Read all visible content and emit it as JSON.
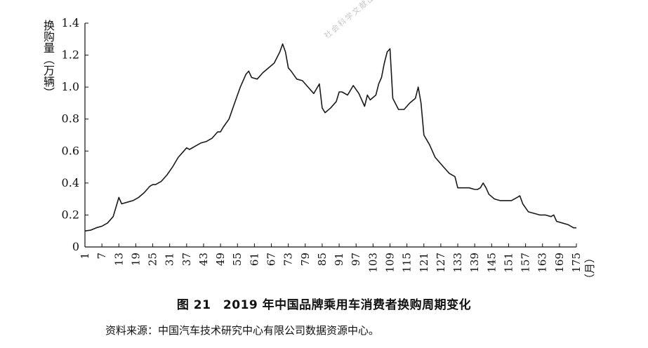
{
  "chart_data": {
    "type": "line",
    "ylabel": "换购量（万辆）",
    "x_unit_label": "（月）",
    "ylim": [
      0,
      1.4
    ],
    "xlim": [
      1,
      175
    ],
    "y_ticks": [
      0,
      0.2,
      0.4,
      0.6,
      0.8,
      1.0,
      1.2,
      1.4
    ],
    "y_tick_labels": [
      "0",
      "0.2",
      "0.4",
      "0.6",
      "0.8",
      "1.0",
      "1.2",
      "1.4"
    ],
    "x_ticks": [
      1,
      7,
      13,
      19,
      25,
      31,
      37,
      43,
      49,
      55,
      61,
      67,
      73,
      79,
      85,
      91,
      97,
      103,
      109,
      115,
      121,
      127,
      133,
      139,
      145,
      151,
      157,
      163,
      169,
      175
    ],
    "grid": false,
    "legend": "none",
    "series": [
      {
        "color": "#1a1a1a",
        "x": [
          1,
          3,
          5,
          7,
          9,
          11,
          12,
          13,
          14,
          16,
          18,
          20,
          22,
          24,
          25,
          26,
          28,
          30,
          32,
          34,
          36,
          37,
          38,
          40,
          42,
          44,
          46,
          48,
          49,
          50,
          52,
          54,
          56,
          58,
          59,
          60,
          62,
          64,
          66,
          68,
          70,
          71,
          72,
          73,
          74,
          76,
          78,
          80,
          82,
          84,
          85,
          86,
          88,
          90,
          91,
          92,
          94,
          96,
          98,
          100,
          101,
          102,
          104,
          105,
          106,
          107,
          108,
          109,
          110,
          112,
          114,
          116,
          118,
          119,
          120,
          121,
          123,
          125,
          127,
          128,
          130,
          132,
          133,
          135,
          137,
          139,
          140,
          141,
          142,
          143,
          144,
          146,
          148,
          150,
          152,
          154,
          155,
          156,
          158,
          160,
          162,
          164,
          166,
          167,
          168,
          170,
          172,
          174,
          175
        ],
        "y": [
          0.1,
          0.105,
          0.12,
          0.13,
          0.15,
          0.19,
          0.25,
          0.31,
          0.27,
          0.28,
          0.29,
          0.31,
          0.34,
          0.38,
          0.39,
          0.39,
          0.41,
          0.45,
          0.5,
          0.56,
          0.6,
          0.62,
          0.61,
          0.63,
          0.65,
          0.66,
          0.68,
          0.72,
          0.72,
          0.75,
          0.8,
          0.9,
          1.0,
          1.08,
          1.1,
          1.06,
          1.05,
          1.09,
          1.12,
          1.15,
          1.22,
          1.27,
          1.22,
          1.12,
          1.1,
          1.05,
          1.04,
          1.0,
          0.96,
          1.02,
          0.87,
          0.84,
          0.87,
          0.91,
          0.97,
          0.97,
          0.95,
          1.01,
          0.96,
          0.88,
          0.95,
          0.92,
          0.95,
          1.02,
          1.06,
          1.15,
          1.22,
          1.24,
          0.93,
          0.86,
          0.86,
          0.9,
          0.93,
          1.0,
          0.9,
          0.7,
          0.64,
          0.56,
          0.52,
          0.5,
          0.46,
          0.44,
          0.37,
          0.37,
          0.37,
          0.36,
          0.36,
          0.37,
          0.4,
          0.37,
          0.33,
          0.3,
          0.29,
          0.29,
          0.29,
          0.31,
          0.32,
          0.27,
          0.22,
          0.21,
          0.2,
          0.2,
          0.19,
          0.2,
          0.16,
          0.15,
          0.14,
          0.12,
          0.12
        ]
      }
    ]
  },
  "caption": "图 21　2019 年中国品牌乘用车消费者换购周期变化",
  "source": "资料来源：中国汽车技术研究中心有限公司数据资源中心。",
  "watermark": "社会科学文献出版社"
}
